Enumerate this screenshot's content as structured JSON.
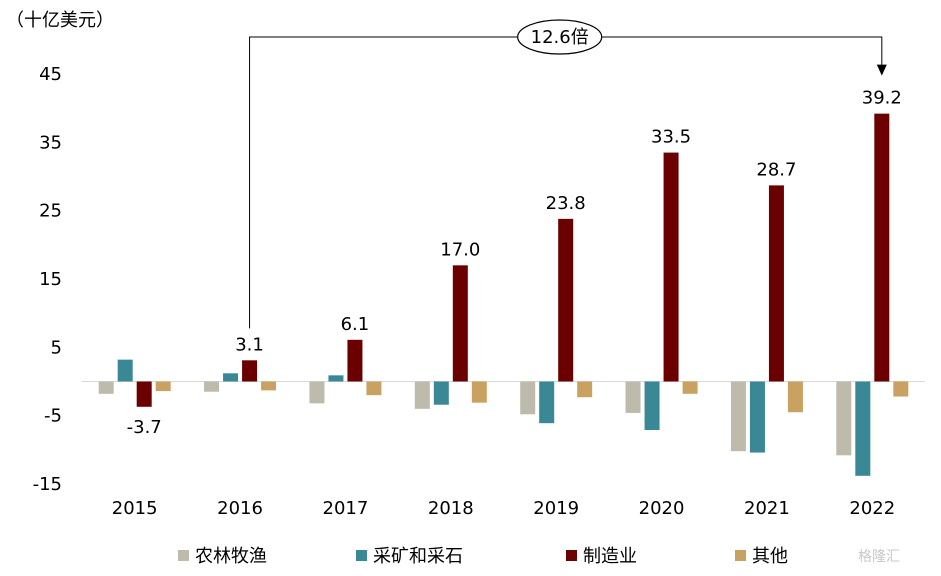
{
  "chart_data": {
    "type": "bar",
    "unit_label": "（十亿美元）",
    "categories": [
      "2015",
      "2016",
      "2017",
      "2018",
      "2019",
      "2020",
      "2021",
      "2022"
    ],
    "ylim": [
      -15,
      45
    ],
    "yticks": [
      "45",
      "35",
      "25",
      "15",
      "5",
      "-5",
      "-15"
    ],
    "ytick_values": [
      45,
      35,
      25,
      15,
      5,
      -5,
      -15
    ],
    "series": [
      {
        "name": "农林牧渔",
        "color": "#bfbbac",
        "values": [
          -1.8,
          -1.5,
          -3.2,
          -4.0,
          -4.8,
          -4.6,
          -10.2,
          -10.8
        ]
      },
      {
        "name": "采矿和采石",
        "color": "#3a8796",
        "values": [
          3.2,
          1.2,
          0.9,
          -3.4,
          -6.1,
          -7.1,
          -10.4,
          -13.8
        ]
      },
      {
        "name": "制造业",
        "color": "#6b0000",
        "values": [
          -3.7,
          3.1,
          6.1,
          17.0,
          23.8,
          33.5,
          28.7,
          39.2
        ],
        "data_labels": [
          "-3.7",
          "3.1",
          "6.1",
          "17.0",
          "23.8",
          "33.5",
          "28.7",
          "39.2"
        ]
      },
      {
        "name": "其他",
        "color": "#c9a261",
        "values": [
          -1.4,
          -1.3,
          -2.0,
          -3.1,
          -2.3,
          -1.8,
          -4.5,
          -2.2
        ]
      }
    ],
    "annotation": {
      "text": "12.6倍",
      "from_category": "2016",
      "to_category": "2022"
    },
    "legend_position": "bottom"
  },
  "watermark": "格隆汇"
}
